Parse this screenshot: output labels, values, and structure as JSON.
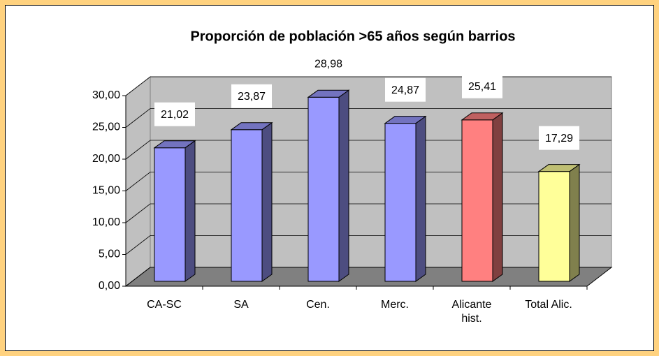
{
  "chart_data": {
    "type": "bar3d",
    "title": "Proporción de población >65 años según barrios",
    "categories": [
      "CA-SC",
      "SA",
      "Cen.",
      "Merc.",
      "Alicante hist.",
      "Total Alic."
    ],
    "values": [
      21.02,
      23.87,
      28.98,
      24.87,
      25.41,
      17.29
    ],
    "value_labels": [
      "21,02",
      "23,87",
      "28,98",
      "24,87",
      "25,41",
      "17,29"
    ],
    "colors": [
      "#9999ff",
      "#9999ff",
      "#9999ff",
      "#9999ff",
      "#ff8080",
      "#ffff99"
    ],
    "ylim": [
      0,
      30
    ],
    "yticks": [
      {
        "value": 0,
        "label": "0,00"
      },
      {
        "value": 5,
        "label": "5,00"
      },
      {
        "value": 10,
        "label": "10,00"
      },
      {
        "value": 15,
        "label": "15,00"
      },
      {
        "value": 20,
        "label": "20,00"
      },
      {
        "value": 25,
        "label": "25,00"
      },
      {
        "value": 30,
        "label": "30,00"
      }
    ],
    "grid": true
  }
}
